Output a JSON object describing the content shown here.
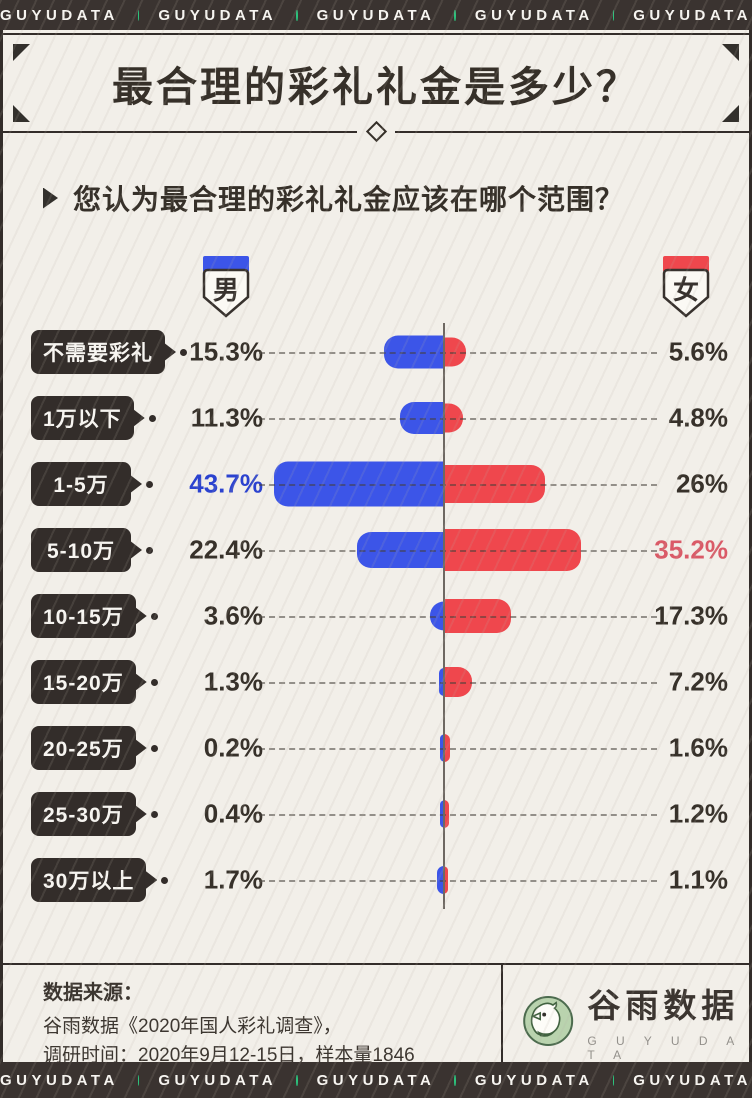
{
  "brand_bar": {
    "label": "GUYUDATA",
    "repeat": 5,
    "dot_color": "#2cc37d"
  },
  "header": {
    "title": "最合理的彩礼礼金是多少？",
    "question": "您认为最合理的彩礼礼金应该在哪个范围？"
  },
  "legend": {
    "male": {
      "label": "男",
      "color": "#3c55e8"
    },
    "female": {
      "label": "女",
      "color": "#ef474d"
    }
  },
  "chart_data": {
    "type": "bar",
    "subtype": "diverging-horizontal-butterfly",
    "categories": [
      "不需要彩礼",
      "1万以下",
      "1-5万",
      "5-10万",
      "10-15万",
      "15-20万",
      "20-25万",
      "25-30万",
      "30万以上"
    ],
    "series": [
      {
        "name": "男",
        "side": "left",
        "color": "#3c55e8",
        "values": [
          15.3,
          11.3,
          43.7,
          22.4,
          3.6,
          1.3,
          0.2,
          0.4,
          1.7
        ],
        "labels": [
          "15.3%",
          "11.3%",
          "43.7%",
          "22.4%",
          "3.6%",
          "1.3%",
          "0.2%",
          "0.4%",
          "1.7%"
        ],
        "label_color": "#37312a",
        "highlight": {
          "index": 2,
          "color": "#2b42cf"
        }
      },
      {
        "name": "女",
        "side": "right",
        "color": "#ef474d",
        "values": [
          5.6,
          4.8,
          26,
          35.2,
          17.3,
          7.2,
          1.6,
          1.2,
          1.1
        ],
        "labels": [
          "5.6%",
          "4.8%",
          "26%",
          "35.2%",
          "17.3%",
          "7.2%",
          "1.6%",
          "1.2%",
          "1.1%"
        ],
        "label_color": "#37312a",
        "highlight": {
          "index": 3,
          "color": "#da5a67"
        }
      }
    ],
    "unit": "%",
    "axis": {
      "type": "shared-center-zero",
      "grid": "dashed-row-leaders"
    },
    "legend_position": "top"
  },
  "footer": {
    "source_title": "数据来源：",
    "source_line1": "谷雨数据《2020年国人彩礼调查》，",
    "source_line2": "调研时间：2020年9月12-15日，样本量1846",
    "logo": {
      "cn": "谷雨数据",
      "en": "G U Y U D A T A"
    }
  }
}
